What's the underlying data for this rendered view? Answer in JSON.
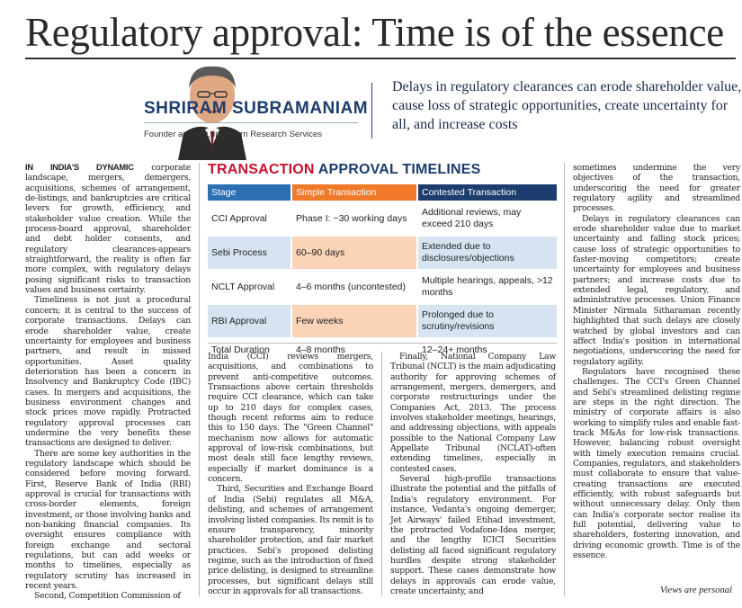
{
  "headline": "Regulatory approval: Time is of the essence",
  "author": {
    "name": "SHRIRAM SUBRAMANIAM",
    "role": "Founder and MD, InGovern Research Services"
  },
  "standfirst": "Delays in regulatory clearances can erode shareholder value, cause loss of strategic opportunities, create uncertainty for all, and increase costs",
  "table": {
    "title_accent": "TRANSACTION",
    "title_rest": " APPROVAL TIMELINES",
    "headers": [
      "Stage",
      "Simple Transaction",
      "Contested Transaction"
    ],
    "rows": [
      [
        "CCI Approval",
        "Phase I: ~30 working days",
        "Additional reviews, may exceed 210 days"
      ],
      [
        "Sebi Process",
        "60–90 days",
        "Extended due to disclosures/objections"
      ],
      [
        "NCLT Approval",
        "4–6 months (uncontested)",
        "Multiple hearings, appeals, >12 months"
      ],
      [
        "RBI Approval",
        "Few weeks",
        "Prolonged due to scrutiny/revisions"
      ],
      [
        "Total Duration",
        "4–8 months",
        "12–24+ months"
      ]
    ]
  },
  "body": {
    "col1": [
      {
        "lead": "IN INDIA'S DYNAMIC",
        "text": " corporate landscape, mergers, demergers, acquisitions, schemes of arrangement, de-listings, and bankruptcies are critical levers for growth, efficiency, and stakeholder value creation. While the process-board approval, shareholder and debt holder consents, and regulatory clearances-appears straightforward, the reality is often far more complex, with regulatory delays posing significant risks to transaction values and business certainty."
      },
      {
        "text": "Timeliness is not just a procedural concern; it is central to the success of corporate transactions. Delays can erode shareholder value, create uncertainty for employees and business partners, and result in missed opportunities. Asset quality deterioration has been a concern in Insolvency and Bankruptcy Code (IBC) cases. In mergers and acquisitions, the business environment changes and stock prices move rapidly. Protracted regulatory approval processes can undermine the very benefits these transactions are designed to deliver."
      },
      {
        "text": "There are some key authorities in the regulatory landscape which should be considered before moving forward. First, Reserve Bank of India (RBI) approval is crucial for transactions with cross-border elements, foreign investment, or those involving banks and non-banking financial companies. Its oversight ensures compliance with foreign exchange and sectoral regulations, but can add weeks or months to timelines, especially as regulatory scrutiny has increased in recent years."
      },
      {
        "text": "Second, Competition Commission of"
      }
    ],
    "col2": [
      {
        "text": "India (CCI) reviews mergers, acquisitions, and combinations to prevent anti-competitive outcomes. Transactions above certain thresholds require CCI clearance, which can take up to 210 days for complex cases, though recent reforms aim to reduce this to 150 days. The \"Green Channel\" mechanism now allows for automatic approval of low-risk combinations, but most deals still face lengthy reviews, especially if market dominance is a concern.",
        "first": true
      },
      {
        "text": "Third, Securities and Exchange Board of India (Sebi) regulates all M&A, delisting, and schemes of arrangement involving listed companies. Its remit is to ensure transparency, minority shareholder protection, and fair market practices. Sebi's proposed delisting regime, such as the introduction of fixed price delisting, is designed to streamline processes, but significant delays still occur in approvals for all transactions."
      }
    ],
    "col3": [
      {
        "text": "Finally, National Company Law Tribunal (NCLT) is the main adjudicating authority for approving schemes of arrangement, mergers, demergers, and corporate restructurings under the Companies Act, 2013. The process involves stakeholder meetings, hearings, and addressing objections, with appeals possible to the National Company Law Appellate Tribunal (NCLAT)-often extending timelines, especially in contested cases."
      },
      {
        "text": "Several high-profile transactions illustrate the potential and the pitfalls of India's regulatory environment. For instance, Vedanta's ongoing demerger, Jet Airways' failed Etihad investment, the protracted Vodafone-Idea merger, and the lengthy ICICI Securities delisting all faced significant regulatory hurdles despite strong stakeholder support. These cases demonstrate how delays in approvals can erode value, create uncertainty, and"
      }
    ],
    "col4": [
      {
        "text": "sometimes undermine the very objectives of the transaction, underscoring the need for greater regulatory agility and streamlined processes.",
        "first": true
      },
      {
        "text": "Delays in regulatory clearances can erode shareholder value due to market uncertainty and falling stock prices; cause loss of strategic opportunities to faster-moving competitors; create uncertainty for employees and business partners; and increase costs due to extended legal, regulatory, and administrative processes. Union Finance Minister Nirmala Sitharaman recently highlighted that such delays are closely watched by global investors and can affect India's position in international negotiations, underscoring the need for regulatory agility."
      },
      {
        "text": "Regulators have recognised these challenges. The CCI's Green Channel and Sebi's streamlined delisting regime are steps in the right direction. The ministry of corporate affairs is also working to simplify rules and enable fast-track M&As for low-risk transactions. However, balancing robust oversight with timely execution remains crucial. Companies, regulators, and stakeholders must collaborate to ensure that value-creating transactions are executed efficiently, with robust safeguards but without unnecessary delay. Only then can India's corporate sector realise its full potential, delivering value to shareholders, fostering innovation, and driving economic growth. Time is of the essence."
      }
    ]
  },
  "footer": "Views are personal",
  "colors": {
    "navy": "#1d3d6e",
    "red": "#c8102e",
    "orange": "#f07a2a",
    "blue": "#2c6fb3"
  },
  "icons": {
    "portrait": "author-portrait-illustration"
  }
}
